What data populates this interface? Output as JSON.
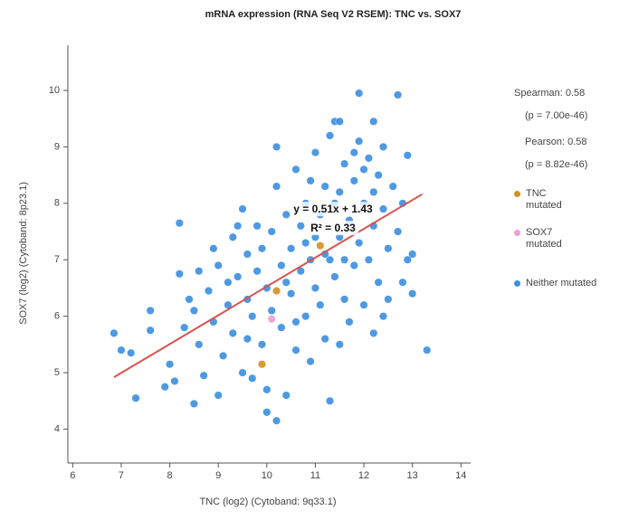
{
  "chart_data": {
    "type": "scatter",
    "title": "mRNA expression (RNA Seq V2 RSEM): TNC vs. SOX7",
    "x_label": "TNC (log2) (Cytoband: 9q33.1)",
    "y_label": "SOX7 (log2) (Cytoband: 8p23.1)",
    "xlim": [
      5.9,
      14.2
    ],
    "ylim": [
      3.4,
      10.8
    ],
    "xticks": [
      6,
      7,
      8,
      9,
      10,
      11,
      12,
      13,
      14
    ],
    "yticks": [
      4,
      5,
      6,
      7,
      8,
      9,
      10
    ],
    "grid": false,
    "stats": [
      "Spearman: 0.58",
      "(p = 7.00e-46)",
      "Pearson: 0.58",
      "(p = 8.82e-46)"
    ],
    "annotations": [
      "y = 0.51x + 1.43",
      "R² = 0.33"
    ],
    "fit_line": {
      "color": "#d9534f",
      "x": [
        6.85,
        13.2
      ],
      "y": [
        4.92,
        8.16
      ]
    },
    "series": [
      {
        "name": "TNC mutated",
        "color": "#d4901c",
        "x": [
          10.2,
          11.1,
          9.9
        ],
        "y": [
          6.45,
          7.25,
          5.15
        ]
      },
      {
        "name": "SOX7 mutated",
        "color": "#e7a3d6",
        "x": [
          10.1
        ],
        "y": [
          5.95
        ]
      },
      {
        "name": "Neither mutated",
        "color": "#3a8ee0",
        "x": [
          11.9,
          12.7,
          8.2,
          6.85,
          7.3,
          10.2,
          13.3,
          13.0,
          13.0,
          12.2,
          11.4,
          11.5,
          12.9,
          8.5,
          10.0,
          11.3,
          7.0,
          7.2,
          7.6,
          7.6,
          7.9,
          8.0,
          8.1,
          8.3,
          8.4,
          8.2,
          8.5,
          8.6,
          8.7,
          8.8,
          8.9,
          8.9,
          9.0,
          9.0,
          9.1,
          9.2,
          9.3,
          9.3,
          9.4,
          9.5,
          9.5,
          9.6,
          9.6,
          9.7,
          9.7,
          9.8,
          9.8,
          9.9,
          9.9,
          10.0,
          10.0,
          10.1,
          10.1,
          10.2,
          10.3,
          10.3,
          10.4,
          10.4,
          10.5,
          10.5,
          10.6,
          10.6,
          10.7,
          10.7,
          10.8,
          10.8,
          10.9,
          10.9,
          11.0,
          11.0,
          11.1,
          11.1,
          11.2,
          11.2,
          11.3,
          11.3,
          11.4,
          11.4,
          11.5,
          11.5,
          11.6,
          11.6,
          11.7,
          11.7,
          11.8,
          11.8,
          11.9,
          11.9,
          12.0,
          12.0,
          12.1,
          12.1,
          12.2,
          12.2,
          12.3,
          12.3,
          12.4,
          12.4,
          12.5,
          12.5,
          12.6,
          12.7,
          12.8,
          12.8,
          12.9,
          12.4,
          10.2,
          9.2,
          9.6,
          10.6,
          11.0,
          10.4,
          9.4,
          8.6,
          11.8,
          12.0,
          11.5,
          10.9,
          10.8,
          11.2,
          11.6,
          12.2
        ],
        "y": [
          9.95,
          9.92,
          7.65,
          5.7,
          4.55,
          4.15,
          5.4,
          6.4,
          7.1,
          9.45,
          9.45,
          9.45,
          8.85,
          4.45,
          4.3,
          4.5,
          5.4,
          5.35,
          6.1,
          5.75,
          4.75,
          5.15,
          4.85,
          5.8,
          6.3,
          6.75,
          6.1,
          5.5,
          4.95,
          6.45,
          5.9,
          7.2,
          6.9,
          4.6,
          5.3,
          6.2,
          7.4,
          5.7,
          6.7,
          7.9,
          5.0,
          6.3,
          7.1,
          4.9,
          6.0,
          6.8,
          7.6,
          5.5,
          7.2,
          6.5,
          4.7,
          7.5,
          6.1,
          8.3,
          5.8,
          6.9,
          7.8,
          4.6,
          6.4,
          7.2,
          5.4,
          8.6,
          6.8,
          7.6,
          6.0,
          8.0,
          7.0,
          5.2,
          8.9,
          6.5,
          7.8,
          6.2,
          8.3,
          5.6,
          7.0,
          9.2,
          6.7,
          8.0,
          7.4,
          5.5,
          8.7,
          6.3,
          7.7,
          5.9,
          8.4,
          6.9,
          7.3,
          9.1,
          8.0,
          6.2,
          8.8,
          7.0,
          5.7,
          7.6,
          8.5,
          6.6,
          7.9,
          9.0,
          7.2,
          6.3,
          8.3,
          7.5,
          6.6,
          8.0,
          7.0,
          6.0,
          9.0,
          6.6,
          5.6,
          5.9,
          7.4,
          6.6,
          7.6,
          6.8,
          8.9,
          8.6,
          8.2,
          8.4,
          7.3,
          7.1,
          7.0,
          8.2
        ]
      }
    ]
  }
}
